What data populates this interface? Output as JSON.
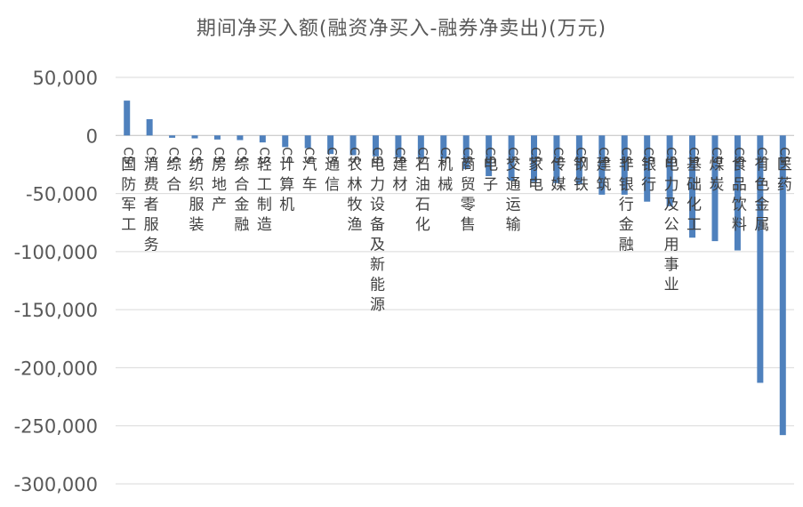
{
  "chart_data": {
    "type": "bar",
    "title": "期间净买入额(融资净买入-融券净卖出)(万元)",
    "xlabel": "",
    "ylabel": "",
    "ylim": [
      -300000,
      50000
    ],
    "yticks": [
      50000,
      0,
      -50000,
      -100000,
      -150000,
      -200000,
      -250000,
      -300000
    ],
    "ytick_labels": [
      "50,000",
      "0",
      "-50,000",
      "-100,000",
      "-150,000",
      "-200,000",
      "-250,000",
      "-300,000"
    ],
    "grid": true,
    "legend": "none",
    "bar_color": "#4f81bd",
    "categories": [
      "CS国防军工",
      "CS消费者服务",
      "CS综合",
      "CS纺织服装",
      "CS房地产",
      "CS综合金融",
      "CS轻工制造",
      "CS计算机",
      "CS汽车",
      "CS通信",
      "CS农林牧渔",
      "CS电力设备及新能源",
      "CS建材",
      "CS石油石化",
      "CS机械",
      "CS商贸零售",
      "CS电子",
      "CS交通运输",
      "CS家电",
      "CS传媒",
      "CS钢铁",
      "CS建筑",
      "CS非银行金融",
      "CS银行",
      "CS电力及公用事业",
      "CS基础化工",
      "CS煤炭",
      "CS食品饮料",
      "CS有色金属",
      "CS医药"
    ],
    "values": [
      30000,
      14000,
      -2000,
      -2500,
      -3500,
      -4000,
      -6000,
      -10000,
      -11000,
      -16000,
      -17000,
      -18000,
      -19000,
      -19500,
      -20000,
      -29000,
      -35000,
      -39000,
      -40000,
      -41000,
      -42000,
      -51000,
      -51000,
      -57000,
      -61000,
      -88000,
      -91000,
      -99000,
      -213000,
      -258000
    ]
  }
}
